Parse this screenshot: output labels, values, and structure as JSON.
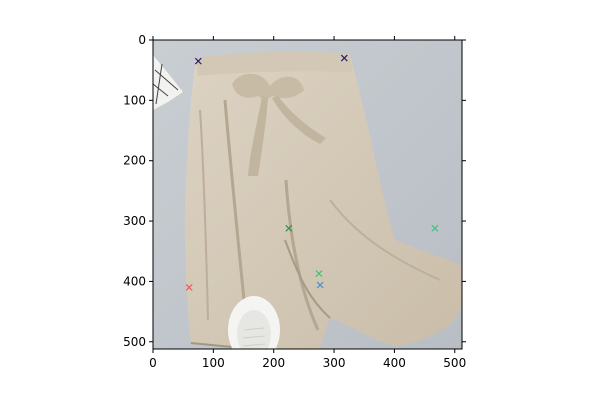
{
  "image": {
    "x_range": [
      0,
      512
    ],
    "y_range": [
      512,
      0
    ],
    "x_ticks": [
      0,
      100,
      200,
      300,
      400,
      500
    ],
    "y_ticks": [
      0,
      100,
      200,
      300,
      400,
      500
    ],
    "x_tick_labels": [
      "0",
      "100",
      "200",
      "300",
      "400",
      "500"
    ],
    "y_tick_labels": [
      "0",
      "100",
      "200",
      "300",
      "400",
      "500"
    ],
    "subject": "beige linen tie-waist shorts on grey background with white sneaker",
    "colors": {
      "background": "#c2c7cc",
      "fabric": "#d8cdbd",
      "fabric_shadow": "#b9ad9b",
      "sneaker": "#f4f4f2"
    }
  },
  "markers": [
    {
      "name": "point-1",
      "x": 75,
      "y": 35,
      "color": "#1a1a6e"
    },
    {
      "name": "point-2",
      "x": 317,
      "y": 30,
      "color": "#2a1f6e"
    },
    {
      "name": "point-3",
      "x": 467,
      "y": 312,
      "color": "#3ec47a"
    },
    {
      "name": "point-4",
      "x": 275,
      "y": 387,
      "color": "#3ec47a"
    },
    {
      "name": "point-5",
      "x": 277,
      "y": 406,
      "color": "#4a8fd0"
    },
    {
      "name": "point-6",
      "x": 60,
      "y": 410,
      "color": "#e06060"
    },
    {
      "name": "point-7",
      "x": 225,
      "y": 312,
      "color": "#2e8f4a"
    }
  ]
}
